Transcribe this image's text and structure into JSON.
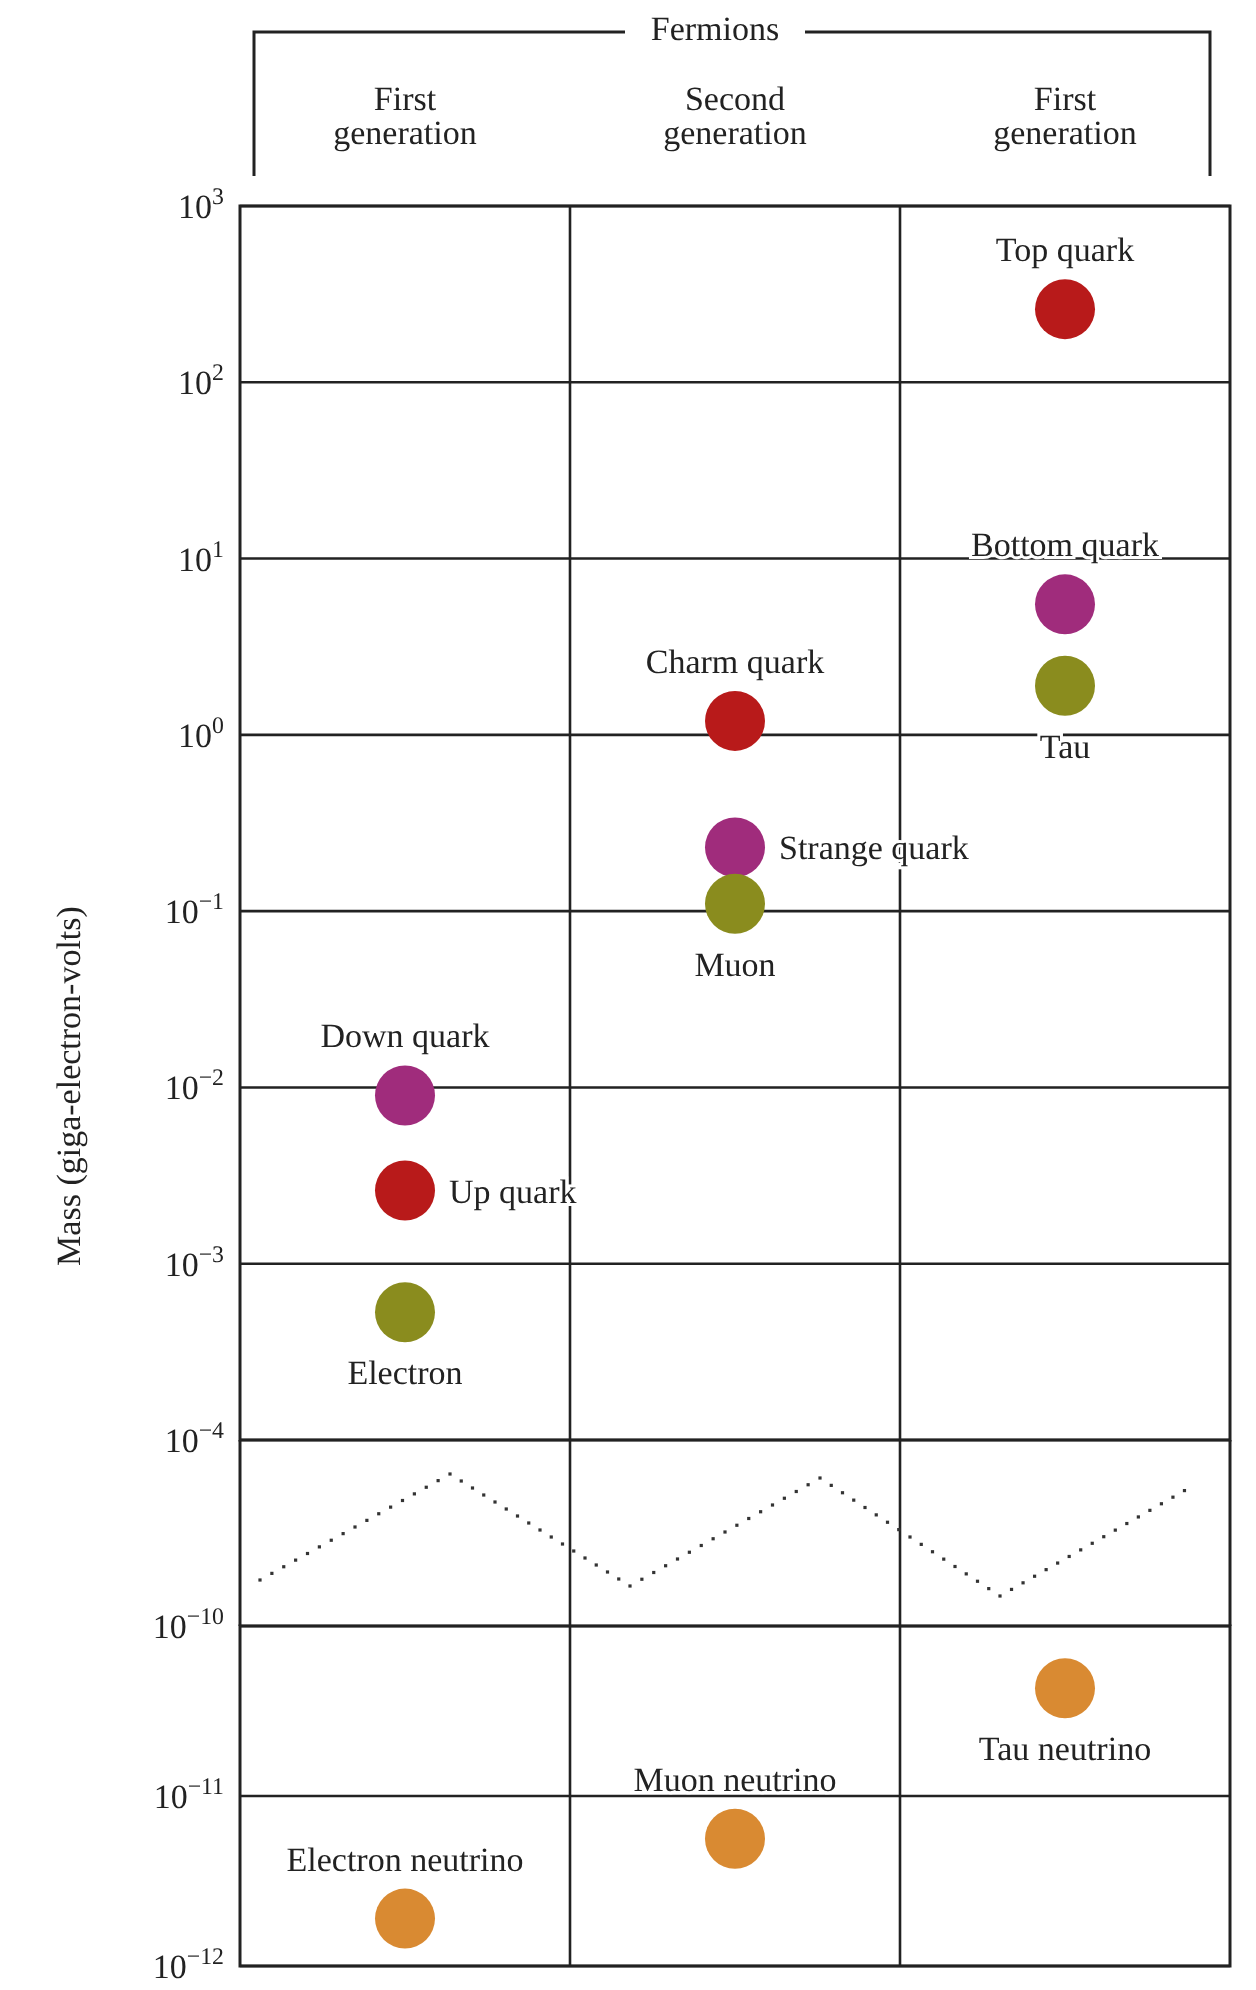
{
  "chart_data": [
    {
      "type": "scatter",
      "title": "Fermions",
      "ylabel": "Mass (giga-electron-volts)",
      "categories": [
        "First generation",
        "Second generation",
        "First generation"
      ],
      "log": "y",
      "grid": true,
      "marker": "circle",
      "ylim": [
        0.0001,
        1000
      ],
      "yticks": [
        {
          "value": 1000,
          "label": "10$^{3}$"
        },
        {
          "value": 100,
          "label": "10$^{2}$"
        },
        {
          "value": 10,
          "label": "10$^{1}$"
        },
        {
          "value": 1,
          "label": "10$^{0}$"
        },
        {
          "value": 0.1,
          "label": "10$^{−1}$"
        },
        {
          "value": 0.01,
          "label": "10$^{−2}$"
        },
        {
          "value": 0.001,
          "label": "10$^{−3}$"
        },
        {
          "value": 0.0001,
          "label": "10$^{−4}$"
        }
      ],
      "series": [
        {
          "name": "Top quark",
          "color": "#b81a1a",
          "values": [
            null,
            null,
            260
          ]
        },
        {
          "name": "Bottom quark",
          "color": "#a02c7c",
          "values": [
            null,
            null,
            5.5
          ]
        },
        {
          "name": "Tau",
          "color": "#8a8c1e",
          "values": [
            null,
            null,
            1.9
          ]
        },
        {
          "name": "Charm quark",
          "color": "#b81a1a",
          "values": [
            null,
            1.2,
            null
          ]
        },
        {
          "name": "Strange quark",
          "color": "#a02c7c",
          "values": [
            null,
            0.23,
            null
          ]
        },
        {
          "name": "Muon",
          "color": "#8a8c1e",
          "values": [
            null,
            0.11,
            null
          ]
        },
        {
          "name": "Down quark",
          "color": "#a02c7c",
          "values": [
            0.009,
            null,
            null
          ]
        },
        {
          "name": "Up quark",
          "color": "#b81a1a",
          "values": [
            0.0026,
            null,
            null
          ]
        },
        {
          "name": "Electron",
          "color": "#8a8c1e",
          "values": [
            0.00053,
            null,
            null
          ]
        }
      ]
    },
    {
      "type": "scatter",
      "categories": [
        null,
        null,
        null
      ],
      "log": "y",
      "grid": true,
      "marker": "circle",
      "tick_labels": "y",
      "ylim": [
        1e-12,
        1e-10
      ],
      "yticks": [
        {
          "value": 1e-10,
          "label": "10$^{−10}$"
        },
        {
          "value": 1e-11,
          "label": "10$^{−11}$"
        },
        {
          "value": 1e-12,
          "label": "10$^{−12}$"
        }
      ],
      "series": [
        {
          "name": "Tau neutrino",
          "color": "#d98a32",
          "values": [
            null,
            null,
            4.3e-11
          ]
        },
        {
          "name": "Muon neutrino",
          "color": "#d98a32",
          "values": [
            null,
            5.6e-12,
            null
          ]
        },
        {
          "name": "Electron neutrino",
          "color": "#d98a32",
          "values": [
            1.9e-12,
            null,
            null
          ]
        }
      ]
    }
  ]
}
